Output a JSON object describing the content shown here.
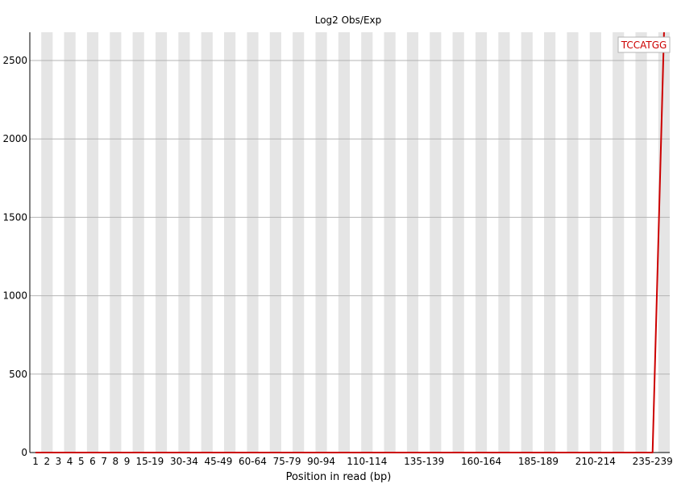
{
  "chart_data": {
    "type": "line",
    "title": "Log2 Obs/Exp",
    "xlabel": "Position in read (bp)",
    "ylabel": "",
    "ylim": [
      0,
      2680
    ],
    "yticks": [
      0,
      500,
      1000,
      1500,
      2000,
      2500
    ],
    "grid": "horizontal",
    "legend_position": "top-right",
    "categories": [
      "1",
      "2",
      "3",
      "4",
      "5",
      "6",
      "7",
      "8",
      "9",
      "10-14",
      "15-19",
      "20-24",
      "25-29",
      "30-34",
      "35-39",
      "40-44",
      "45-49",
      "50-54",
      "55-59",
      "60-64",
      "65-69",
      "70-74",
      "75-79",
      "80-84",
      "85-89",
      "90-94",
      "95-99",
      "100-104",
      "105-109",
      "110-114",
      "115-119",
      "120-124",
      "125-129",
      "130-134",
      "135-139",
      "140-144",
      "145-149",
      "150-154",
      "155-159",
      "160-164",
      "165-169",
      "170-174",
      "175-179",
      "180-184",
      "185-189",
      "190-194",
      "195-199",
      "200-204",
      "205-209",
      "210-214",
      "215-219",
      "220-224",
      "225-229",
      "230-234",
      "235-239",
      "240-244"
    ],
    "visible_tick_labels": [
      "1",
      "2",
      "3",
      "4",
      "5",
      "6",
      "7",
      "8",
      "9",
      "15-19",
      "30-34",
      "45-49",
      "60-64",
      "75-79",
      "90-94",
      "110-114",
      "135-139",
      "160-164",
      "185-189",
      "210-214",
      "235-239"
    ],
    "series": [
      {
        "name": "TCCATGG",
        "color": "#cc0000",
        "values": [
          0,
          0,
          0,
          0,
          0,
          0,
          0,
          0,
          0,
          0,
          0,
          0,
          0,
          0,
          0,
          0,
          0,
          0,
          0,
          0,
          0,
          0,
          0,
          0,
          0,
          0,
          0,
          0,
          0,
          0,
          0,
          0,
          0,
          0,
          0,
          0,
          0,
          0,
          0,
          0,
          0,
          0,
          0,
          0,
          0,
          0,
          0,
          0,
          0,
          0,
          0,
          0,
          0,
          0,
          0,
          2680
        ]
      }
    ]
  },
  "colors": {
    "stripe": "#e5e5e5",
    "grid": "#b4b4b4",
    "axis": "#000000",
    "legend_border": "#b4b4b4"
  }
}
